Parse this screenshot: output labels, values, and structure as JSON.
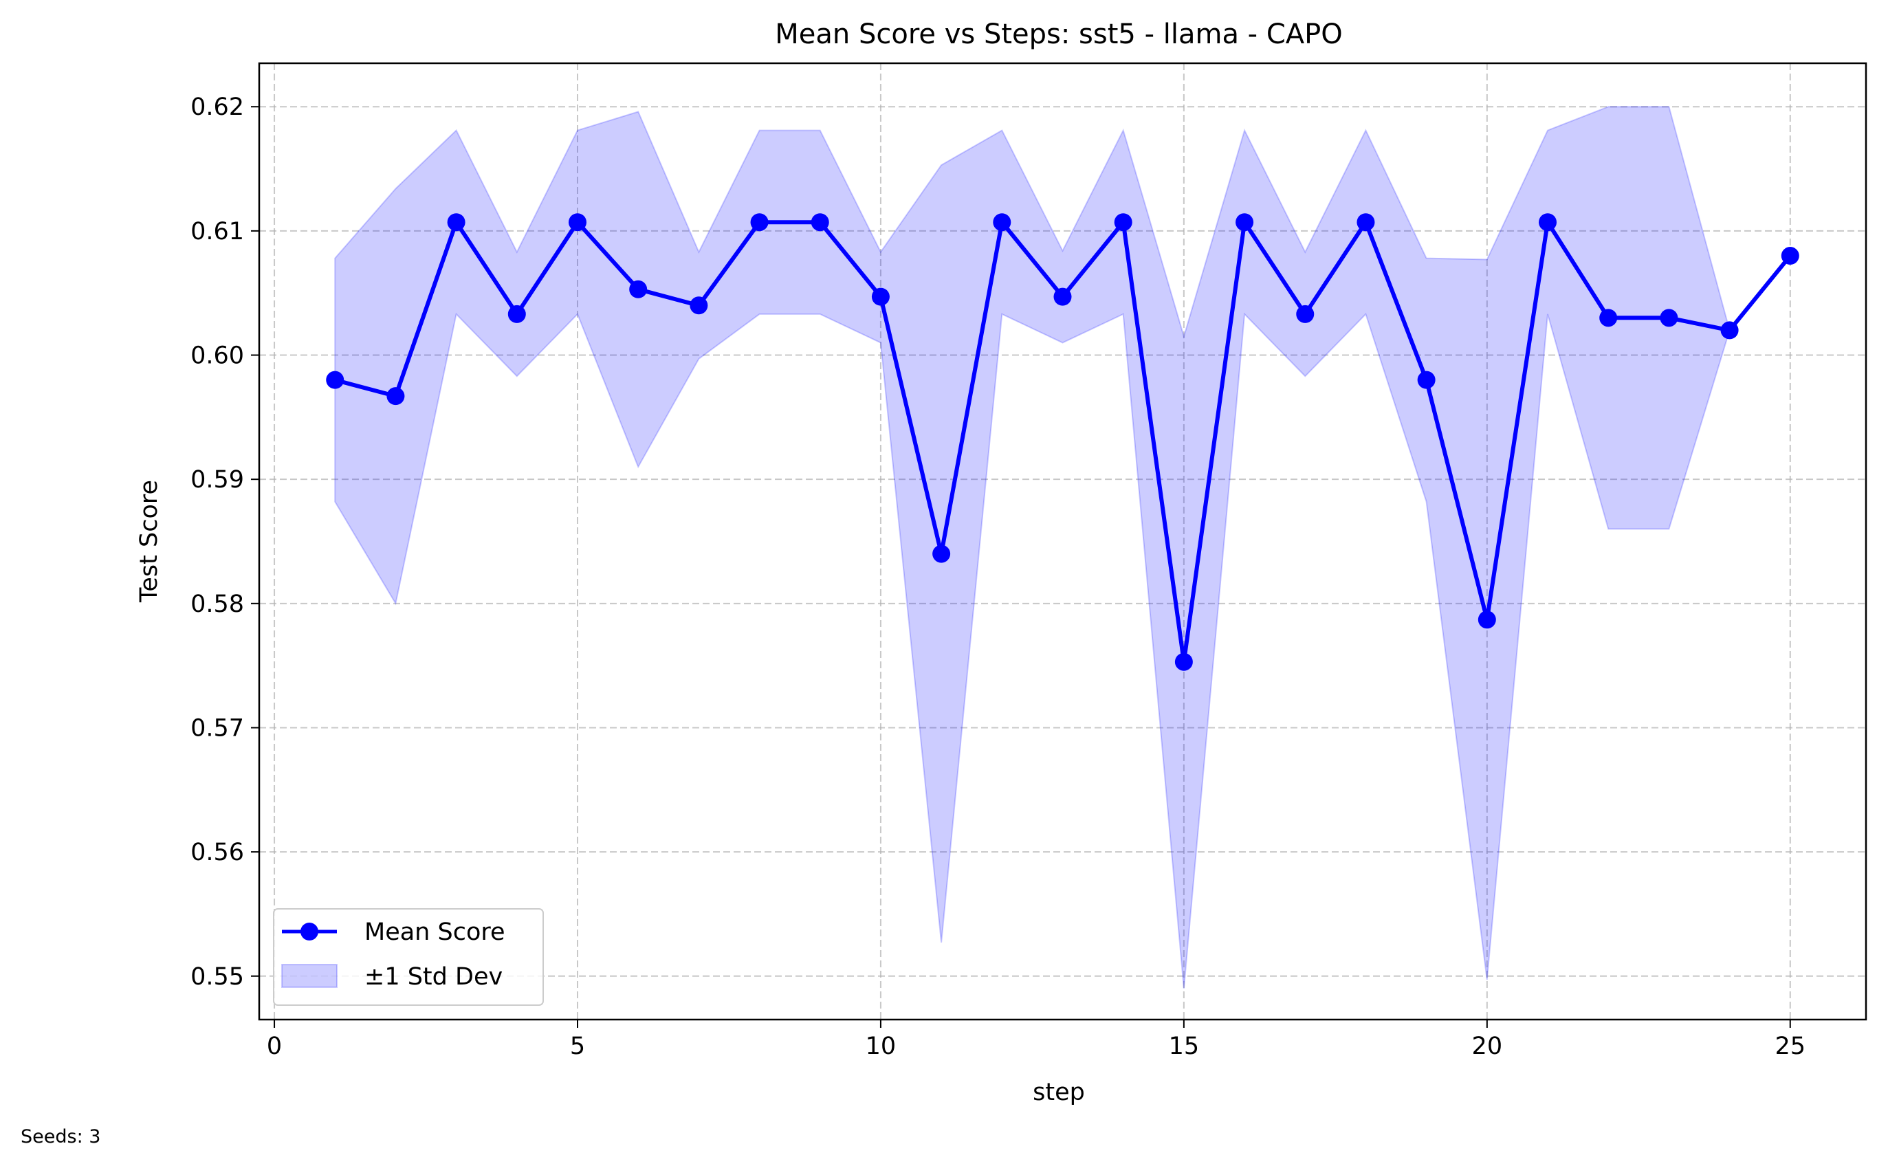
{
  "chart_data": {
    "type": "line",
    "title": "Mean Score vs Steps: sst5 - llama - CAPO",
    "xlabel": "step",
    "ylabel": "Test Score",
    "xlim": [
      -0.25,
      26.25
    ],
    "ylim": [
      0.5465,
      0.6235
    ],
    "xticks": [
      0,
      5,
      10,
      15,
      20,
      25
    ],
    "yticks": [
      0.55,
      0.56,
      0.57,
      0.58,
      0.59,
      0.6,
      0.61,
      0.62
    ],
    "ytick_labels": [
      "0.55",
      "0.56",
      "0.57",
      "0.58",
      "0.59",
      "0.60",
      "0.61",
      "0.62"
    ],
    "grid": true,
    "legend_position": "lower-left",
    "x": [
      1,
      2,
      3,
      4,
      5,
      6,
      7,
      8,
      9,
      10,
      11,
      12,
      13,
      14,
      15,
      16,
      17,
      18,
      19,
      20,
      21,
      22,
      23,
      24,
      25
    ],
    "series": [
      {
        "name": "Mean Score",
        "color": "#0000ff",
        "values": [
          0.598,
          0.5967,
          0.6107,
          0.6033,
          0.6107,
          0.6053,
          0.604,
          0.6107,
          0.6107,
          0.6047,
          0.584,
          0.6107,
          0.6047,
          0.6107,
          0.5753,
          0.6107,
          0.6033,
          0.6107,
          0.598,
          0.5787,
          0.6107,
          0.603,
          0.603,
          0.602,
          0.608
        ]
      }
    ],
    "band": {
      "name": "±1 Std Dev",
      "color": "#0000ff",
      "opacity": 0.2,
      "upper": [
        0.6078,
        0.6134,
        0.6181,
        0.6083,
        0.6181,
        0.6196,
        0.6083,
        0.6181,
        0.6181,
        0.6083,
        0.6153,
        0.6181,
        0.6084,
        0.6181,
        0.6015,
        0.6181,
        0.6083,
        0.6181,
        0.6078,
        0.6077,
        0.6181,
        0.62,
        0.62,
        0.602,
        0.608
      ],
      "lower": [
        0.5882,
        0.58,
        0.6033,
        0.5983,
        0.6033,
        0.591,
        0.5997,
        0.6033,
        0.6033,
        0.601,
        0.5527,
        0.6033,
        0.601,
        0.6033,
        0.549,
        0.6033,
        0.5983,
        0.6033,
        0.5882,
        0.5497,
        0.6033,
        0.586,
        0.586,
        0.602,
        0.608
      ]
    },
    "footnote": "Seeds: 3"
  }
}
